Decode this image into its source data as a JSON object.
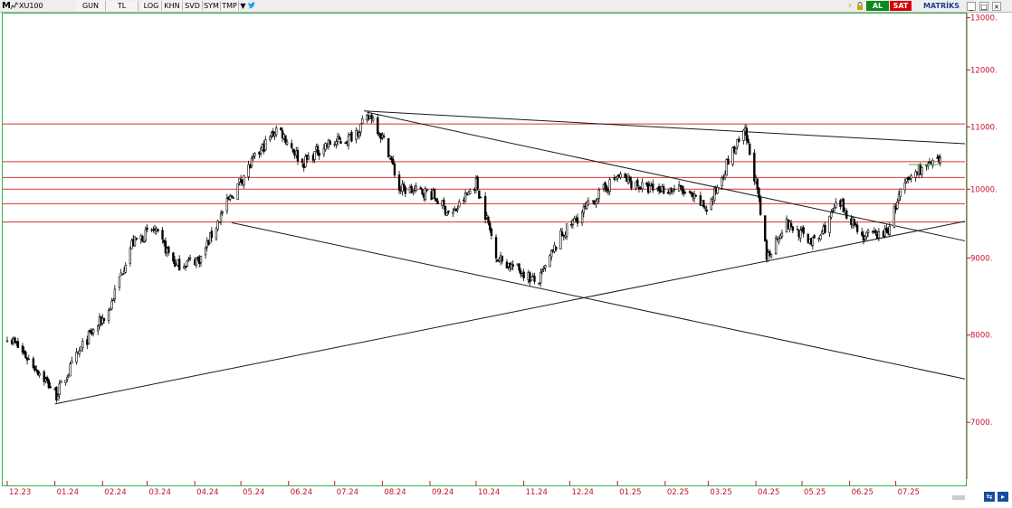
{
  "toolbar": {
    "app_logo": "M",
    "symbol": "XU100",
    "buttons": [
      "GUN",
      "TL",
      "LOG",
      "KHN",
      "SVD",
      "SYM",
      "TMP"
    ],
    "buy_label": "AL",
    "sell_label": "SAT",
    "brand": "MATRİKS",
    "icons": [
      "chart-line-icon",
      "chevron-down-icon",
      "twitter-icon",
      "bolt-icon",
      "lock-icon",
      "navigate-icon",
      "zoom-icon"
    ]
  },
  "colors": {
    "candles": "#000000",
    "axis_text": "#c8102e",
    "horizontal_levels": "#e03030",
    "trendlines": "#1a1a1a",
    "plot_border": "#33b24a",
    "buy": "#0a8a1a",
    "sell": "#d80000",
    "marker": "#33c24a"
  },
  "chart_data": {
    "type": "candlestick",
    "symbol": "XU100",
    "y_tick_labels": [
      "13000.",
      "12000.",
      "11000.",
      "10000.",
      "9000.",
      "8000.",
      "7000."
    ],
    "y_ticks": [
      13000,
      12000,
      11000,
      10000,
      9000,
      8000,
      7000
    ],
    "y_axis_scale": "log",
    "ylim": [
      6400,
      13100
    ],
    "x_tick_labels": [
      "12.23",
      "01.24",
      "02.24",
      "03.24",
      "04.24",
      "05.24",
      "06.24",
      "07.24",
      "08.24",
      "09.24",
      "10.24",
      "11.24",
      "12.24",
      "01.25",
      "02.25",
      "03.25",
      "04.25",
      "05.25",
      "06.25",
      "07.25"
    ],
    "months_range": [
      "2023-12",
      "2025-07"
    ],
    "horizontal_levels": [
      11050,
      10430,
      10180,
      10000,
      9780,
      9510
    ],
    "trendlines": [
      {
        "from": [
          "2024-01-01",
          7200
        ],
        "to": [
          "2025-08-15",
          9520
        ]
      },
      {
        "from": [
          "2024-07-20",
          11270
        ],
        "to": [
          "2025-08-15",
          10720
        ]
      },
      {
        "from": [
          "2024-04-25",
          9500
        ],
        "to": [
          "2025-08-15",
          7480
        ]
      },
      {
        "from": [
          "2024-07-22",
          11250
        ],
        "to": [
          "2025-08-15",
          9240
        ]
      }
    ],
    "monthly_path": [
      [
        "2023-12-01",
        8000
      ],
      [
        "2023-12-20",
        7600
      ],
      [
        "2024-01-02",
        7300
      ],
      [
        "2024-01-20",
        7900
      ],
      [
        "2024-02-05",
        8300
      ],
      [
        "2024-02-20",
        9200
      ],
      [
        "2024-03-05",
        9400
      ],
      [
        "2024-03-20",
        8900
      ],
      [
        "2024-04-05",
        9000
      ],
      [
        "2024-04-20",
        9700
      ],
      [
        "2024-05-05",
        10300
      ],
      [
        "2024-05-25",
        11000
      ],
      [
        "2024-06-10",
        10400
      ],
      [
        "2024-06-25",
        10700
      ],
      [
        "2024-07-10",
        10800
      ],
      [
        "2024-07-25",
        11200
      ],
      [
        "2024-08-05",
        10600
      ],
      [
        "2024-08-12",
        10000
      ],
      [
        "2024-09-01",
        9950
      ],
      [
        "2024-09-15",
        9600
      ],
      [
        "2024-10-01",
        10100
      ],
      [
        "2024-10-15",
        9000
      ],
      [
        "2024-11-01",
        8800
      ],
      [
        "2024-11-10",
        8650
      ],
      [
        "2024-11-25",
        9300
      ],
      [
        "2024-12-15",
        9800
      ],
      [
        "2025-01-01",
        10200
      ],
      [
        "2025-01-20",
        10000
      ],
      [
        "2025-02-10",
        10000
      ],
      [
        "2025-03-01",
        9700
      ],
      [
        "2025-03-15",
        10500
      ],
      [
        "2025-03-25",
        10900
      ],
      [
        "2025-04-01",
        10100
      ],
      [
        "2025-04-08",
        9000
      ],
      [
        "2025-04-20",
        9500
      ],
      [
        "2025-05-10",
        9200
      ],
      [
        "2025-05-25",
        9800
      ],
      [
        "2025-06-10",
        9300
      ],
      [
        "2025-06-25",
        9350
      ],
      [
        "2025-07-05",
        10000
      ],
      [
        "2025-07-15",
        10300
      ],
      [
        "2025-07-30",
        10420
      ]
    ]
  }
}
